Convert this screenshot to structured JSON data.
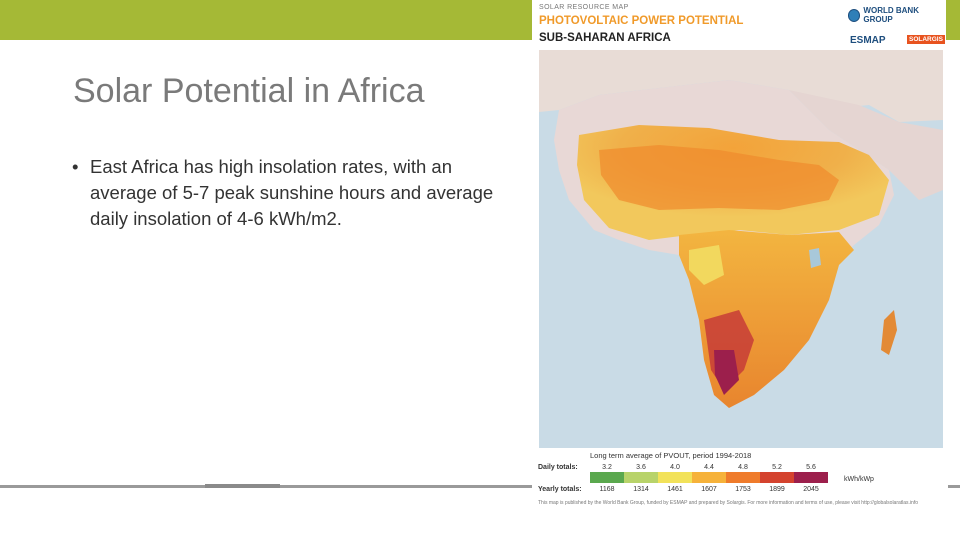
{
  "slide": {
    "title": "Solar Potential in Africa",
    "bullets": [
      "East Africa has high insolation rates, with an average of 5-7 peak sunshine hours and average daily insolation of 4-6 kWh/m2."
    ],
    "accent_color": "#a5b936"
  },
  "map_image": {
    "header_small": "SOLAR RESOURCE MAP",
    "header_title": "PHOTOVOLTAIC POWER POTENTIAL",
    "header_region": "SUB-SAHARAN AFRICA",
    "logo_worldbank": "WORLD BANK GROUP",
    "logo_esmap": "ESMAP",
    "logo_solargis": "SOLARGIS",
    "legend_title": "Long term average of PVOUT, period 1994-2018",
    "daily_label": "Daily totals:",
    "yearly_label": "Yearly totals:",
    "daily_values": [
      "3.2",
      "3.6",
      "4.0",
      "4.4",
      "4.8",
      "5.2",
      "5.6"
    ],
    "yearly_values": [
      "1168",
      "1314",
      "1461",
      "1607",
      "1753",
      "1899",
      "2045"
    ],
    "unit": "kWh/kWp",
    "legend_colors": [
      "#5aa84e",
      "#b8d36a",
      "#f2e25a",
      "#f6b23a",
      "#ef7b2b",
      "#d4432e",
      "#9c1f4c"
    ],
    "footer": "This map is published by the World Bank Group, funded by ESMAP and prepared by Solargis. For more information and terms of use, please visit http://globalsolaratlas.info"
  }
}
